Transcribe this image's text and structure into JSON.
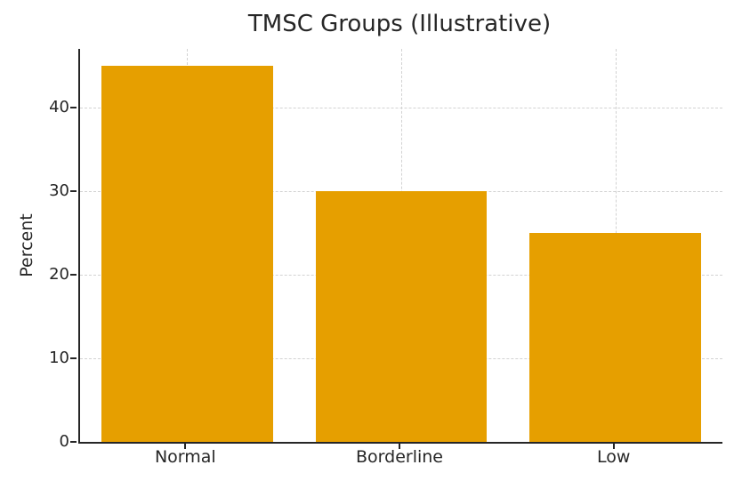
{
  "chart_data": {
    "type": "bar",
    "title": "TMSC Groups (Illustrative)",
    "ylabel": "Percent",
    "xlabel": "",
    "categories": [
      "Normal",
      "Borderline",
      "Low"
    ],
    "values": [
      45,
      30,
      25
    ],
    "yticks": [
      0,
      10,
      20,
      30,
      40
    ],
    "ylim": [
      0,
      47
    ],
    "bar_color": "#E69F00",
    "bar_width_fraction": 0.8,
    "grid": "dashed",
    "grid_color": "#d2d2d2",
    "axis_color": "#262626",
    "background": "#ffffff",
    "legend": "none"
  }
}
